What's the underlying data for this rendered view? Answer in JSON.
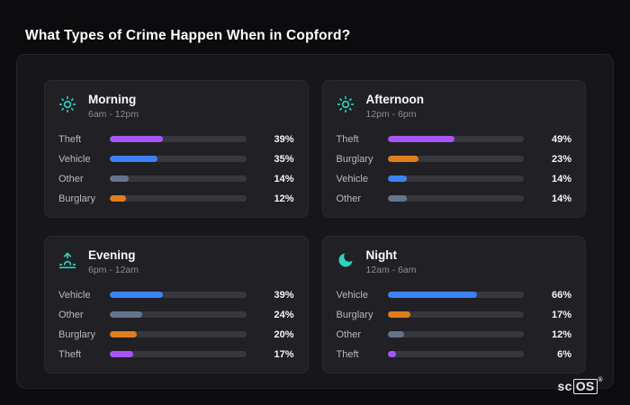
{
  "page_title": "What Types of Crime Happen When in Copford?",
  "colors": {
    "theft": "#a855f7",
    "vehicle": "#3b82f6",
    "other": "#64748b",
    "burglary": "#e07e1d",
    "icon_accent": "#2dd4bf",
    "background": "#0c0c0e",
    "panel": "#17171a",
    "card": "#202025"
  },
  "chart_data": [
    {
      "type": "bar",
      "orientation": "horizontal",
      "title": "Morning",
      "subtitle": "6am - 12pm",
      "icon": "sun-icon",
      "xlim": [
        0,
        100
      ],
      "unit": "%",
      "rows": [
        {
          "label": "Theft",
          "value": 39,
          "percent": "39%",
          "color": "#a855f7"
        },
        {
          "label": "Vehicle",
          "value": 35,
          "percent": "35%",
          "color": "#3b82f6"
        },
        {
          "label": "Other",
          "value": 14,
          "percent": "14%",
          "color": "#64748b"
        },
        {
          "label": "Burglary",
          "value": 12,
          "percent": "12%",
          "color": "#e07e1d"
        }
      ]
    },
    {
      "type": "bar",
      "orientation": "horizontal",
      "title": "Afternoon",
      "subtitle": "12pm - 6pm",
      "icon": "sun-icon",
      "xlim": [
        0,
        100
      ],
      "unit": "%",
      "rows": [
        {
          "label": "Theft",
          "value": 49,
          "percent": "49%",
          "color": "#a855f7"
        },
        {
          "label": "Burglary",
          "value": 23,
          "percent": "23%",
          "color": "#e07e1d"
        },
        {
          "label": "Vehicle",
          "value": 14,
          "percent": "14%",
          "color": "#3b82f6"
        },
        {
          "label": "Other",
          "value": 14,
          "percent": "14%",
          "color": "#64748b"
        }
      ]
    },
    {
      "type": "bar",
      "orientation": "horizontal",
      "title": "Evening",
      "subtitle": "6pm - 12am",
      "icon": "sunset-icon",
      "xlim": [
        0,
        100
      ],
      "unit": "%",
      "rows": [
        {
          "label": "Vehicle",
          "value": 39,
          "percent": "39%",
          "color": "#3b82f6"
        },
        {
          "label": "Other",
          "value": 24,
          "percent": "24%",
          "color": "#64748b"
        },
        {
          "label": "Burglary",
          "value": 20,
          "percent": "20%",
          "color": "#e07e1d"
        },
        {
          "label": "Theft",
          "value": 17,
          "percent": "17%",
          "color": "#a855f7"
        }
      ]
    },
    {
      "type": "bar",
      "orientation": "horizontal",
      "title": "Night",
      "subtitle": "12am - 6am",
      "icon": "moon-icon",
      "xlim": [
        0,
        100
      ],
      "unit": "%",
      "rows": [
        {
          "label": "Vehicle",
          "value": 66,
          "percent": "66%",
          "color": "#3b82f6"
        },
        {
          "label": "Burglary",
          "value": 17,
          "percent": "17%",
          "color": "#e07e1d"
        },
        {
          "label": "Other",
          "value": 12,
          "percent": "12%",
          "color": "#64748b"
        },
        {
          "label": "Theft",
          "value": 6,
          "percent": "6%",
          "color": "#a855f7"
        }
      ]
    }
  ],
  "logo": {
    "prefix": "sc",
    "boxed": "OS",
    "mark": "®"
  }
}
